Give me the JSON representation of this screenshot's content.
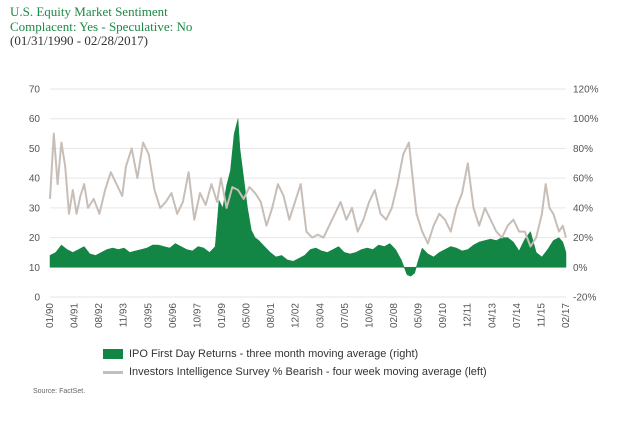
{
  "header": {
    "title": "U.S. Equity Market Sentiment",
    "subtitle": "Complacent: Yes  - Speculative: No",
    "date_range": "(01/31/1990 - 02/28/2017)"
  },
  "source": "Source: FactSet.",
  "colors": {
    "ipo_fill": "#138544",
    "survey_line": "#c8beb8",
    "title": "#1b8a45",
    "grid": "#e6e6e6"
  },
  "chart_data": {
    "type": "area",
    "title": "U.S. Equity Market Sentiment",
    "left_axis": {
      "ylim": [
        0,
        70
      ],
      "ticks": [
        "0",
        "10",
        "20",
        "30",
        "40",
        "50",
        "60",
        "70"
      ]
    },
    "right_axis": {
      "ylim": [
        -20,
        120
      ],
      "ticks": [
        "-20%",
        "0%",
        "20%",
        "40%",
        "60%",
        "80%",
        "100%",
        "120%"
      ]
    },
    "x_ticks": [
      "01/90",
      "04/91",
      "08/92",
      "11/93",
      "03/95",
      "06/96",
      "10/97",
      "01/99",
      "05/00",
      "08/01",
      "12/02",
      "03/04",
      "07/05",
      "10/06",
      "02/08",
      "05/09",
      "09/10",
      "12/11",
      "04/13",
      "07/14",
      "11/15",
      "02/17"
    ],
    "x_range": [
      1990.0,
      2017.17
    ],
    "grid": "horizontal",
    "legend_position": "bottom",
    "series": [
      {
        "name": "IPO First Day Returns - three month moving average (right)",
        "axis": "right",
        "kind": "area",
        "x": [
          1990.0,
          1990.3,
          1990.6,
          1990.9,
          1991.2,
          1991.5,
          1991.8,
          1992.1,
          1992.4,
          1992.7,
          1993.0,
          1993.3,
          1993.6,
          1993.9,
          1994.2,
          1994.5,
          1994.8,
          1995.1,
          1995.4,
          1995.7,
          1996.0,
          1996.3,
          1996.6,
          1996.9,
          1997.2,
          1997.5,
          1997.8,
          1998.1,
          1998.4,
          1998.7,
          1998.9,
          1999.1,
          1999.3,
          1999.5,
          1999.7,
          1999.9,
          2000.0,
          2000.2,
          2000.4,
          2000.6,
          2000.8,
          2001.0,
          2001.3,
          2001.6,
          2001.9,
          2002.2,
          2002.5,
          2002.8,
          2003.1,
          2003.4,
          2003.7,
          2004.0,
          2004.3,
          2004.6,
          2004.9,
          2005.2,
          2005.5,
          2005.8,
          2006.1,
          2006.4,
          2006.7,
          2007.0,
          2007.3,
          2007.6,
          2007.9,
          2008.2,
          2008.5,
          2008.8,
          2009.0,
          2009.2,
          2009.4,
          2009.6,
          2009.9,
          2010.2,
          2010.5,
          2010.8,
          2011.1,
          2011.4,
          2011.7,
          2012.0,
          2012.3,
          2012.6,
          2012.9,
          2013.2,
          2013.5,
          2013.8,
          2014.1,
          2014.4,
          2014.7,
          2015.0,
          2015.3,
          2015.6,
          2015.9,
          2016.2,
          2016.5,
          2016.8,
          2017.0,
          2017.17
        ],
        "values": [
          8,
          10,
          15,
          12,
          10,
          12,
          14,
          9,
          8,
          10,
          12,
          13,
          12,
          13,
          10,
          11,
          12,
          13,
          15,
          15,
          14,
          13,
          16,
          14,
          12,
          11,
          14,
          13,
          10,
          14,
          45,
          40,
          55,
          65,
          90,
          100,
          80,
          60,
          40,
          25,
          20,
          18,
          14,
          10,
          7,
          8,
          5,
          4,
          6,
          8,
          12,
          13,
          11,
          10,
          12,
          14,
          10,
          9,
          10,
          12,
          13,
          12,
          15,
          14,
          16,
          12,
          5,
          -5,
          -6,
          -4,
          5,
          13,
          9,
          7,
          10,
          12,
          14,
          13,
          11,
          12,
          15,
          17,
          18,
          19,
          18,
          20,
          20,
          17,
          11,
          19,
          24,
          10,
          7,
          12,
          18,
          20,
          17,
          10
        ]
      },
      {
        "name": "Investors Intelligence Survey % Bearish - four week moving average (left)",
        "axis": "left",
        "kind": "line",
        "x": [
          1990.0,
          1990.2,
          1990.4,
          1990.6,
          1990.8,
          1991.0,
          1991.2,
          1991.4,
          1991.6,
          1991.8,
          1992.0,
          1992.3,
          1992.6,
          1992.9,
          1993.2,
          1993.5,
          1993.8,
          1994.0,
          1994.3,
          1994.6,
          1994.9,
          1995.2,
          1995.5,
          1995.8,
          1996.1,
          1996.4,
          1996.7,
          1997.0,
          1997.3,
          1997.6,
          1997.9,
          1998.2,
          1998.5,
          1998.8,
          1999.0,
          1999.3,
          1999.6,
          1999.9,
          2000.2,
          2000.5,
          2000.8,
          2001.1,
          2001.4,
          2001.7,
          2002.0,
          2002.3,
          2002.6,
          2002.9,
          2003.2,
          2003.5,
          2003.8,
          2004.1,
          2004.4,
          2004.7,
          2005.0,
          2005.3,
          2005.6,
          2005.9,
          2006.2,
          2006.5,
          2006.8,
          2007.1,
          2007.4,
          2007.7,
          2008.0,
          2008.3,
          2008.6,
          2008.9,
          2009.1,
          2009.3,
          2009.6,
          2009.9,
          2010.2,
          2010.5,
          2010.8,
          2011.1,
          2011.4,
          2011.7,
          2012.0,
          2012.3,
          2012.6,
          2012.9,
          2013.2,
          2013.5,
          2013.8,
          2014.1,
          2014.4,
          2014.7,
          2015.0,
          2015.3,
          2015.6,
          2015.9,
          2016.1,
          2016.3,
          2016.5,
          2016.8,
          2017.0,
          2017.17
        ],
        "values": [
          33,
          55,
          38,
          52,
          44,
          28,
          36,
          28,
          34,
          38,
          30,
          33,
          28,
          36,
          42,
          38,
          34,
          44,
          50,
          40,
          52,
          48,
          36,
          30,
          32,
          35,
          28,
          32,
          42,
          26,
          35,
          31,
          38,
          32,
          40,
          30,
          37,
          36,
          33,
          37,
          35,
          32,
          24,
          30,
          38,
          34,
          26,
          32,
          38,
          22,
          20,
          21,
          20,
          24,
          28,
          32,
          26,
          30,
          22,
          26,
          32,
          36,
          28,
          26,
          30,
          38,
          48,
          52,
          40,
          28,
          22,
          18,
          24,
          28,
          26,
          22,
          30,
          35,
          45,
          30,
          24,
          30,
          26,
          22,
          20,
          24,
          26,
          22,
          22,
          17,
          20,
          28,
          38,
          30,
          28,
          22,
          24,
          20
        ]
      }
    ]
  }
}
